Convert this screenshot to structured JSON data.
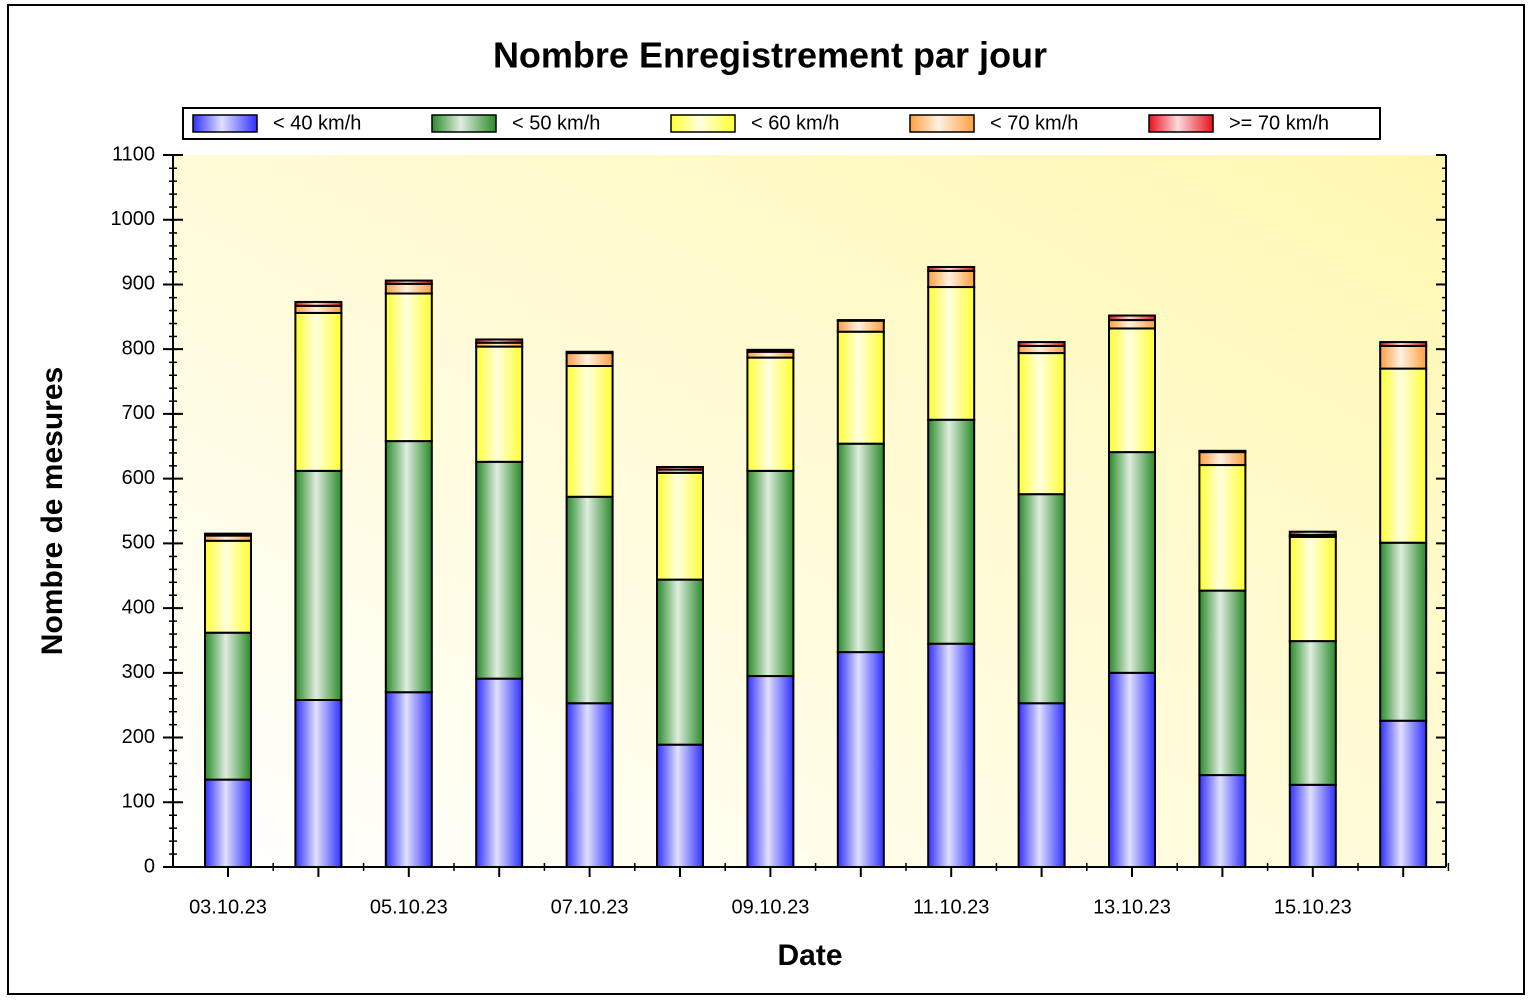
{
  "chart_data": {
    "type": "stacked_bar",
    "title": "Nombre Enregistrement par jour",
    "x_label": "Date",
    "y_label": "Nombre de mesures",
    "categories": [
      "03.10.23",
      null,
      "05.10.23",
      null,
      "07.10.23",
      null,
      "09.10.23",
      null,
      "11.10.23",
      null,
      "13.10.23",
      null,
      "15.10.23",
      null
    ],
    "series": [
      {
        "name": "< 40 km/h",
        "color": "#3030ff",
        "values": [
          135,
          258,
          270,
          291,
          253,
          189,
          295,
          332,
          345,
          253,
          300,
          142,
          127,
          226
        ]
      },
      {
        "name": "< 50 km/h",
        "color": "#2a8a2a",
        "values": [
          227,
          354,
          388,
          335,
          319,
          255,
          317,
          322,
          346,
          323,
          341,
          285,
          222,
          275
        ]
      },
      {
        "name": "< 60 km/h",
        "color": "#ffff30",
        "values": [
          142,
          244,
          228,
          178,
          202,
          165,
          175,
          173,
          205,
          218,
          191,
          194,
          161,
          269
        ]
      },
      {
        "name": "< 70 km/h",
        "color": "#ffa040",
        "values": [
          8,
          11,
          15,
          6,
          20,
          5,
          9,
          17,
          25,
          11,
          13,
          20,
          3,
          35
        ]
      },
      {
        "name": ">= 70 km/h",
        "color": "#e8101c",
        "values": [
          3,
          6,
          5,
          5,
          2,
          4,
          3,
          1,
          6,
          6,
          7,
          2,
          5,
          6
        ]
      }
    ],
    "ylim": [
      0,
      1100
    ],
    "yticks": [
      0,
      100,
      200,
      300,
      400,
      500,
      600,
      700,
      800,
      900,
      1000,
      1100
    ],
    "legend": "top"
  }
}
